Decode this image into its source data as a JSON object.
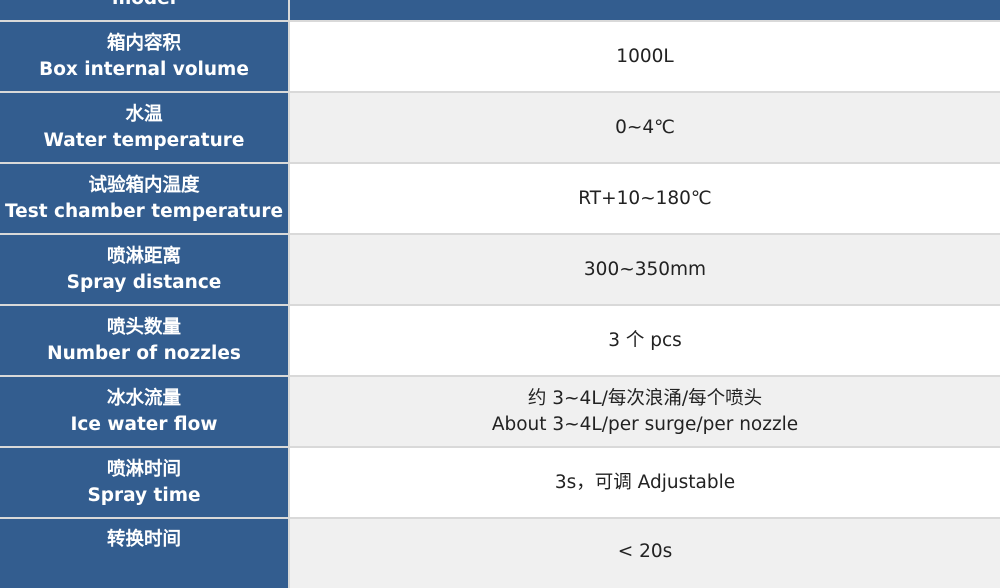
{
  "table": {
    "header": {
      "label_en": "model"
    },
    "rows": [
      {
        "label_zh": "箱内容积",
        "label_en": "Box internal volume",
        "value": [
          "1000L"
        ]
      },
      {
        "label_zh": "水温",
        "label_en": "Water temperature",
        "value": [
          "0~4℃"
        ]
      },
      {
        "label_zh": "试验箱内温度",
        "label_en": "Test chamber temperature",
        "value": [
          "RT+10~180℃"
        ]
      },
      {
        "label_zh": "喷淋距离",
        "label_en": "Spray distance",
        "value": [
          "300~350mm"
        ]
      },
      {
        "label_zh": "喷头数量",
        "label_en": "Number of nozzles",
        "value": [
          "3 个  pcs"
        ]
      },
      {
        "label_zh": "冰水流量",
        "label_en": "Ice water flow",
        "value": [
          "约 3~4L/每次浪涌/每个喷头",
          "About 3~4L/per surge/per nozzle"
        ]
      },
      {
        "label_zh": "喷淋时间",
        "label_en": "Spray time",
        "value": [
          "3s，可调  Adjustable"
        ]
      },
      {
        "label_zh": "转换时间",
        "label_en": "",
        "value": [
          "< 20s"
        ]
      }
    ]
  },
  "colors": {
    "header_blue": "#335d8f",
    "row_white": "#ffffff",
    "row_gray": "#f0f0f0",
    "border": "#d9d9d9"
  }
}
